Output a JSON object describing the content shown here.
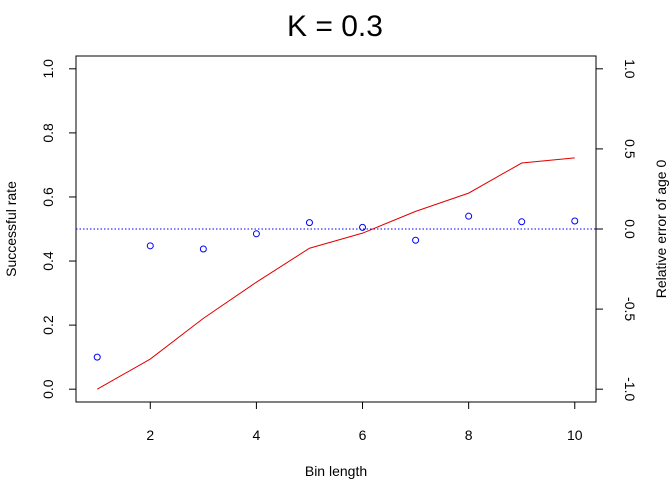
{
  "chart_data": {
    "type": "line",
    "title": "K = 0.3",
    "xlabel": "Bin length",
    "ylabel_left": "Successful rate",
    "ylabel_right": "Relative error of age 0",
    "xlim": [
      0.6,
      10.4
    ],
    "ylim_left": [
      -0.04,
      1.04
    ],
    "ylim_right": [
      -1.08,
      1.08
    ],
    "x_ticks": [
      2,
      4,
      6,
      8,
      10
    ],
    "y_ticks_left": [
      0.0,
      0.2,
      0.4,
      0.6,
      0.8,
      1.0
    ],
    "y_ticks_right": [
      -1.0,
      -0.5,
      0.0,
      0.5,
      1.0
    ],
    "grid": false,
    "series": [
      {
        "axis": "left",
        "style": "line",
        "color": "#e00000",
        "x": [
          1,
          2,
          3,
          4,
          5,
          6,
          7,
          8,
          9,
          10
        ],
        "values": [
          0.0,
          0.094,
          0.221,
          0.334,
          0.44,
          0.487,
          0.555,
          0.612,
          0.706,
          0.722
        ]
      },
      {
        "axis": "right",
        "style": "points",
        "color": "#0000ff",
        "x": [
          1,
          2,
          3,
          4,
          5,
          6,
          7,
          8,
          9,
          10
        ],
        "values": [
          -0.8,
          -0.105,
          -0.125,
          -0.03,
          0.04,
          0.01,
          -0.07,
          0.08,
          0.045,
          0.05
        ]
      }
    ],
    "reference_line": {
      "axis": "right",
      "value": 0.0,
      "style": "dotted",
      "color": "#0000ff"
    }
  }
}
